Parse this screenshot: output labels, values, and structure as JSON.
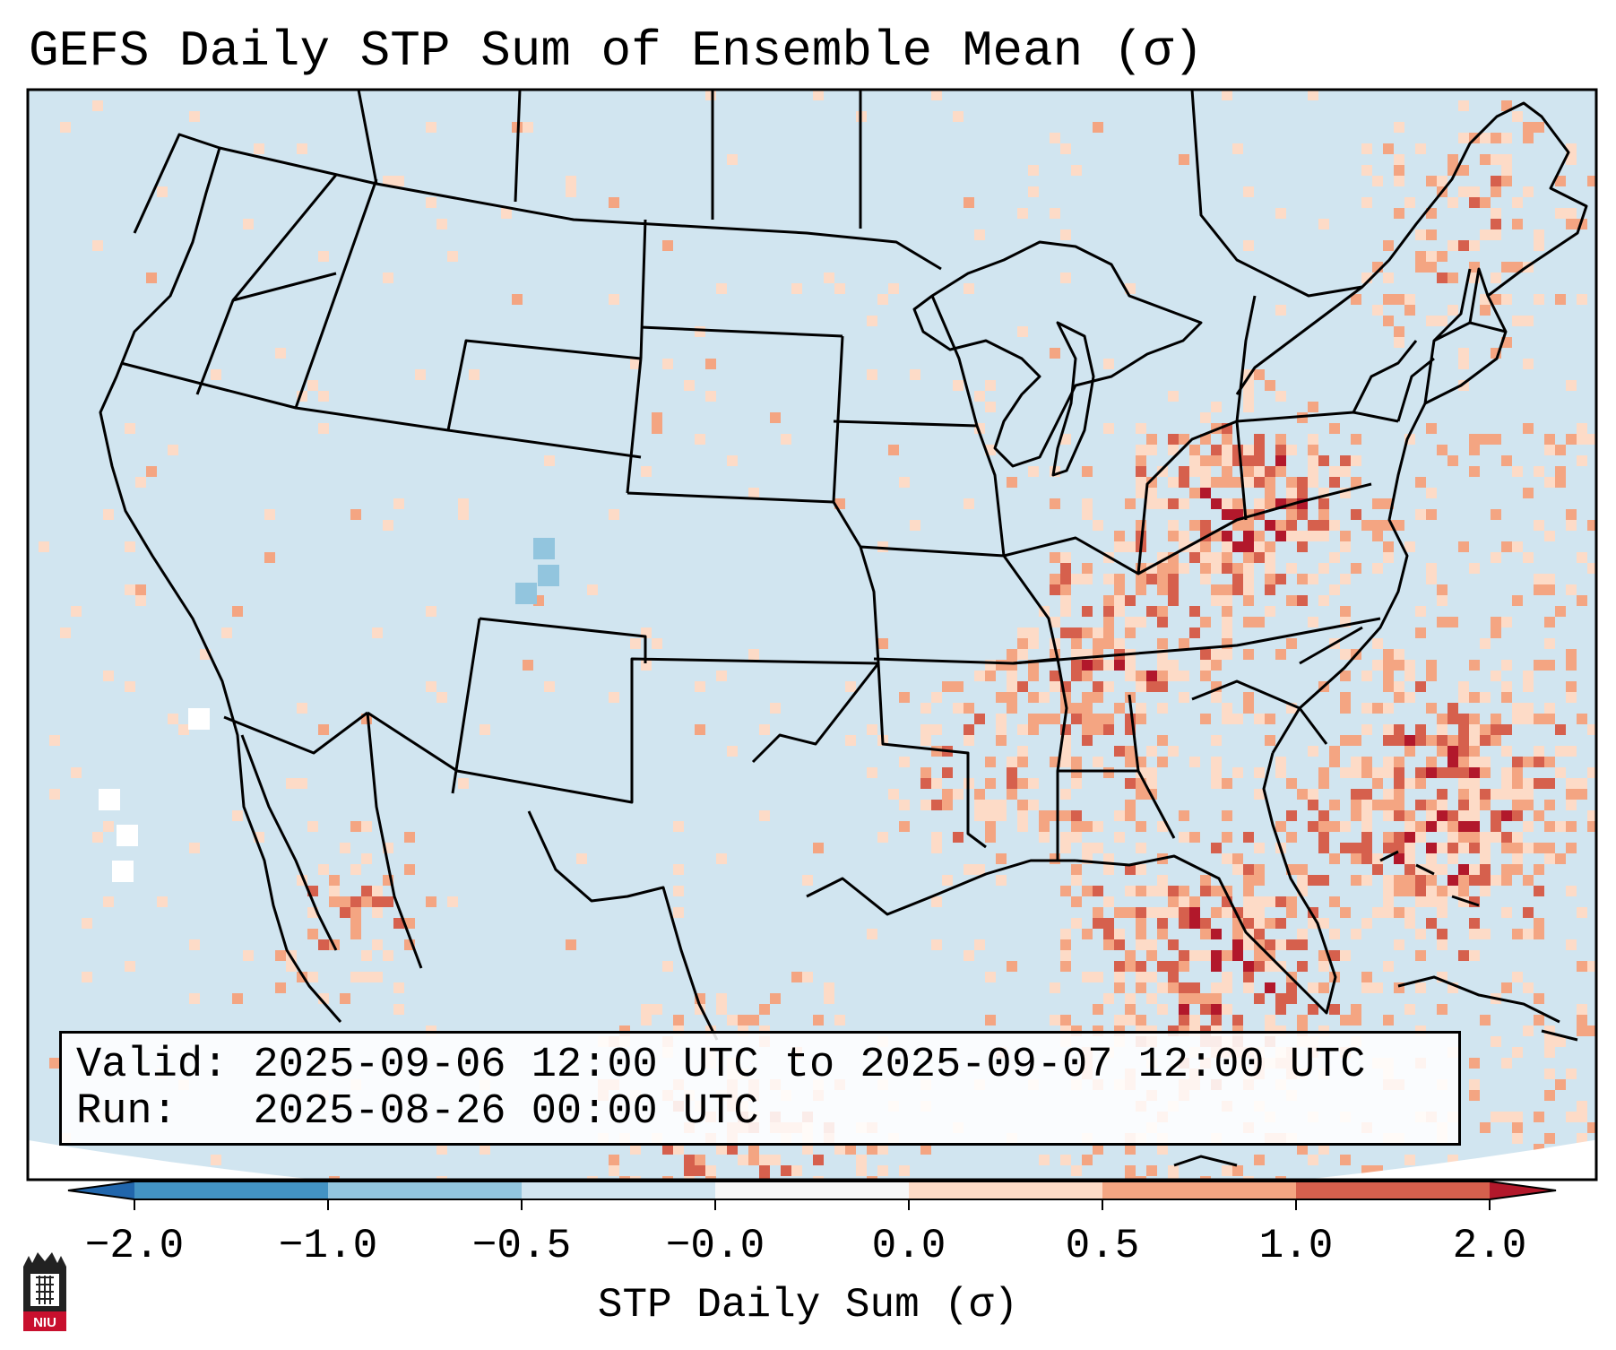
{
  "title": "GEFS Daily STP Sum of Ensemble Mean (σ)",
  "info": {
    "valid_label": "Valid:",
    "valid_value": "2025-09-06 12:00 UTC to 2025-09-07 12:00 UTC",
    "run_label": "Run:",
    "run_value": "2025-08-26 00:00 UTC"
  },
  "colorbar": {
    "label": "STP Daily Sum (σ)",
    "ticks": [
      "−2.0",
      "−1.0",
      "−0.5",
      "−0.0",
      "0.0",
      "0.5",
      "1.0",
      "2.0"
    ],
    "bins": [
      {
        "from": -2.0,
        "to": -1.0,
        "color": "#4393c3"
      },
      {
        "from": -1.0,
        "to": -0.5,
        "color": "#92c5de"
      },
      {
        "from": -0.5,
        "to": -0.0,
        "color": "#d1e5f0"
      },
      {
        "from": -0.0,
        "to": 0.0,
        "color": "#f7f7f7"
      },
      {
        "from": 0.0,
        "to": 0.5,
        "color": "#fddbc7"
      },
      {
        "from": 0.5,
        "to": 1.0,
        "color": "#f4a582"
      },
      {
        "from": 1.0,
        "to": 2.0,
        "color": "#d6604d"
      }
    ],
    "under_color": "#2166ac",
    "over_color": "#b2182b"
  },
  "map": {
    "background_color": "#d1e5f0",
    "outside_color": "#ffffff",
    "border_color": "#000000"
  },
  "logo": {
    "text": "NIU",
    "color": "#c8102e"
  }
}
